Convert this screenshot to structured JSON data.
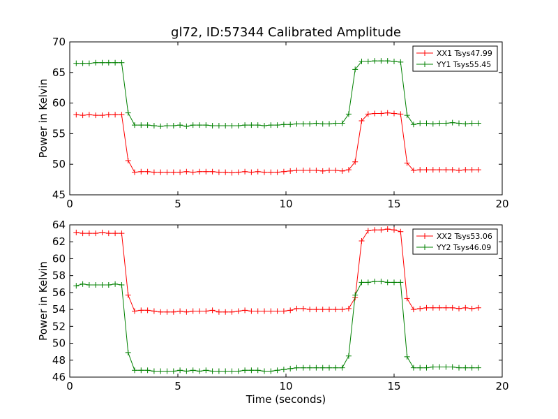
{
  "figure_title": "gl72, ID:57344 Calibrated Amplitude",
  "xlabel_bottom": "Time (seconds)",
  "colors": {
    "red": "#ff0000",
    "green": "#008000",
    "axis": "#000000"
  },
  "chart_data": [
    {
      "type": "line",
      "title": "gl72, ID:57344 Calibrated Amplitude",
      "xlabel": "",
      "ylabel": "Power in Kelvin",
      "xlim": [
        0,
        20
      ],
      "ylim": [
        45,
        70
      ],
      "xticks": [
        0,
        5,
        10,
        15,
        20
      ],
      "yticks": [
        45,
        50,
        55,
        60,
        65,
        70
      ],
      "grid": false,
      "legend": "upper-right",
      "x": [
        0.3,
        0.6,
        0.9,
        1.2,
        1.5,
        1.8,
        2.1,
        2.4,
        2.7,
        3.0,
        3.3,
        3.6,
        3.9,
        4.2,
        4.5,
        4.8,
        5.1,
        5.4,
        5.7,
        6.0,
        6.3,
        6.6,
        6.9,
        7.2,
        7.5,
        7.8,
        8.1,
        8.4,
        8.7,
        9.0,
        9.3,
        9.6,
        9.9,
        10.2,
        10.5,
        10.8,
        11.1,
        11.4,
        11.7,
        12.0,
        12.3,
        12.6,
        12.9,
        13.2,
        13.5,
        13.8,
        14.1,
        14.4,
        14.7,
        15.0,
        15.3,
        15.6,
        15.9,
        16.2,
        16.5,
        16.8,
        17.1,
        17.4,
        17.7,
        18.0,
        18.3,
        18.6,
        18.9
      ],
      "series": [
        {
          "name": "XX1 Tsys47.99",
          "color": "#ff0000",
          "values": [
            58.1,
            58.0,
            58.1,
            58.0,
            58.0,
            58.1,
            58.1,
            58.1,
            50.6,
            48.7,
            48.8,
            48.8,
            48.7,
            48.7,
            48.7,
            48.7,
            48.7,
            48.8,
            48.7,
            48.8,
            48.8,
            48.8,
            48.7,
            48.7,
            48.6,
            48.7,
            48.8,
            48.7,
            48.8,
            48.7,
            48.7,
            48.7,
            48.8,
            48.9,
            49.0,
            49.0,
            49.0,
            49.0,
            48.9,
            49.0,
            49.0,
            48.9,
            49.1,
            50.4,
            57.1,
            58.2,
            58.3,
            58.3,
            58.4,
            58.3,
            58.2,
            50.2,
            49.0,
            49.1,
            49.1,
            49.1,
            49.1,
            49.1,
            49.1,
            49.0,
            49.1,
            49.1,
            49.1
          ]
        },
        {
          "name": "YY1 Tsys55.45",
          "color": "#008000",
          "values": [
            66.5,
            66.5,
            66.5,
            66.6,
            66.6,
            66.6,
            66.6,
            66.6,
            58.4,
            56.4,
            56.4,
            56.4,
            56.3,
            56.2,
            56.3,
            56.3,
            56.4,
            56.2,
            56.4,
            56.4,
            56.4,
            56.3,
            56.3,
            56.3,
            56.3,
            56.3,
            56.4,
            56.4,
            56.4,
            56.3,
            56.4,
            56.4,
            56.5,
            56.5,
            56.6,
            56.6,
            56.6,
            56.7,
            56.6,
            56.6,
            56.7,
            56.7,
            58.2,
            65.5,
            66.8,
            66.8,
            66.9,
            66.9,
            66.9,
            66.8,
            66.7,
            58.0,
            56.5,
            56.7,
            56.7,
            56.6,
            56.7,
            56.7,
            56.8,
            56.7,
            56.6,
            56.7,
            56.7
          ]
        }
      ]
    },
    {
      "type": "line",
      "title": "",
      "xlabel": "Time (seconds)",
      "ylabel": "Power in Kelvin",
      "xlim": [
        0,
        20
      ],
      "ylim": [
        46,
        64
      ],
      "xticks": [
        0,
        5,
        10,
        15,
        20
      ],
      "yticks": [
        46,
        48,
        50,
        52,
        54,
        56,
        58,
        60,
        62,
        64
      ],
      "grid": false,
      "legend": "upper-right",
      "x": [
        0.3,
        0.6,
        0.9,
        1.2,
        1.5,
        1.8,
        2.1,
        2.4,
        2.7,
        3.0,
        3.3,
        3.6,
        3.9,
        4.2,
        4.5,
        4.8,
        5.1,
        5.4,
        5.7,
        6.0,
        6.3,
        6.6,
        6.9,
        7.2,
        7.5,
        7.8,
        8.1,
        8.4,
        8.7,
        9.0,
        9.3,
        9.6,
        9.9,
        10.2,
        10.5,
        10.8,
        11.1,
        11.4,
        11.7,
        12.0,
        12.3,
        12.6,
        12.9,
        13.2,
        13.5,
        13.8,
        14.1,
        14.4,
        14.7,
        15.0,
        15.3,
        15.6,
        15.9,
        16.2,
        16.5,
        16.8,
        17.1,
        17.4,
        17.7,
        18.0,
        18.3,
        18.6,
        18.9
      ],
      "series": [
        {
          "name": "XX2 Tsys53.06",
          "color": "#ff0000",
          "values": [
            63.1,
            63.0,
            63.0,
            63.0,
            63.1,
            63.0,
            63.0,
            63.0,
            55.7,
            53.8,
            53.9,
            53.9,
            53.8,
            53.7,
            53.7,
            53.7,
            53.8,
            53.7,
            53.8,
            53.8,
            53.8,
            53.9,
            53.7,
            53.7,
            53.7,
            53.8,
            53.9,
            53.8,
            53.8,
            53.8,
            53.8,
            53.8,
            53.8,
            53.9,
            54.1,
            54.1,
            54.0,
            54.0,
            54.0,
            54.0,
            54.0,
            54.0,
            54.1,
            55.4,
            62.1,
            63.3,
            63.4,
            63.4,
            63.5,
            63.4,
            63.2,
            55.3,
            54.0,
            54.1,
            54.2,
            54.2,
            54.2,
            54.2,
            54.2,
            54.1,
            54.2,
            54.1,
            54.2
          ]
        },
        {
          "name": "YY2 Tsys46.09",
          "color": "#008000",
          "values": [
            56.8,
            57.0,
            56.9,
            56.9,
            56.9,
            56.9,
            57.0,
            56.9,
            48.9,
            46.8,
            46.8,
            46.8,
            46.7,
            46.7,
            46.7,
            46.7,
            46.8,
            46.7,
            46.8,
            46.7,
            46.8,
            46.7,
            46.7,
            46.7,
            46.7,
            46.7,
            46.8,
            46.8,
            46.8,
            46.7,
            46.7,
            46.8,
            46.9,
            47.0,
            47.1,
            47.1,
            47.1,
            47.1,
            47.1,
            47.1,
            47.1,
            47.1,
            48.5,
            55.7,
            57.2,
            57.2,
            57.3,
            57.3,
            57.2,
            57.2,
            57.2,
            48.4,
            47.1,
            47.1,
            47.1,
            47.2,
            47.2,
            47.2,
            47.2,
            47.1,
            47.1,
            47.1,
            47.1
          ]
        }
      ]
    }
  ]
}
